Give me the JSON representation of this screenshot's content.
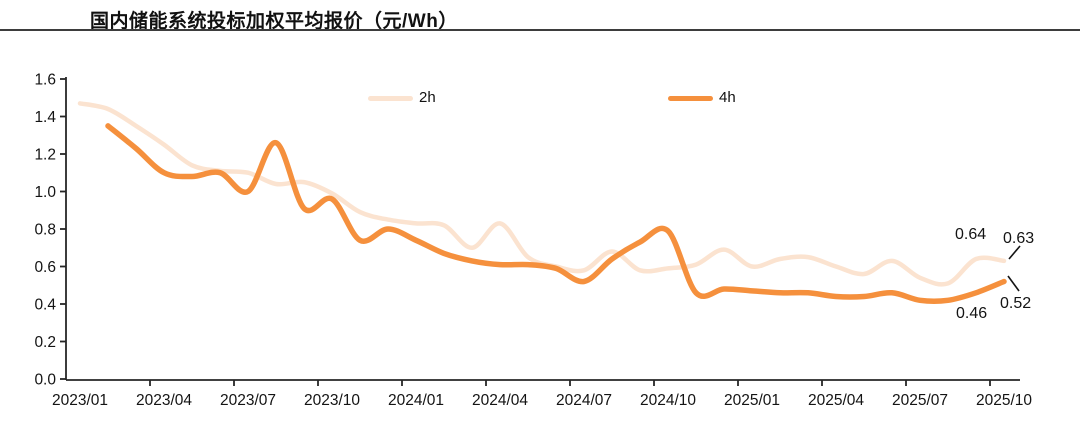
{
  "header": {
    "title": "国内储能系统投标加权平均报价（元/Wh）"
  },
  "chart_data": {
    "type": "line",
    "title": "国内储能系统投标加权平均报价（元/Wh）",
    "unit": "元/Wh",
    "grid": false,
    "legend_position": "top-center",
    "ylim": [
      0,
      1.6
    ],
    "y_axis_tick_labels": [
      "0.0",
      "0.2",
      "0.4",
      "0.6",
      "0.8",
      "1.0",
      "1.2",
      "1.4",
      "1.6"
    ],
    "x_axis_tick_labels": [
      "2023/01",
      "2023/04",
      "2023/07",
      "2023/10",
      "2024/01",
      "2024/04",
      "2024/07",
      "2024/10",
      "2025/01",
      "2025/04",
      "2025/07",
      "2025/10"
    ],
    "x": [
      "2023/01",
      "2023/02",
      "2023/03",
      "2023/04",
      "2023/05",
      "2023/06",
      "2023/07",
      "2023/08",
      "2023/09",
      "2023/10",
      "2023/11",
      "2023/12",
      "2024/01",
      "2024/02",
      "2024/03",
      "2024/04",
      "2024/05",
      "2024/06",
      "2024/07",
      "2024/08",
      "2024/09",
      "2024/10",
      "2024/11",
      "2024/12",
      "2025/01",
      "2025/02",
      "2025/03",
      "2025/04",
      "2025/05",
      "2025/06",
      "2025/07",
      "2025/08",
      "2025/09",
      "2025/10"
    ],
    "series": [
      {
        "name": "2h",
        "color": "#FBE3D0",
        "values": [
          1.47,
          1.44,
          1.35,
          1.25,
          1.14,
          1.11,
          1.1,
          1.04,
          1.05,
          0.99,
          0.89,
          0.85,
          0.83,
          0.82,
          0.7,
          0.83,
          0.65,
          0.6,
          0.58,
          0.68,
          0.58,
          0.59,
          0.61,
          0.69,
          0.6,
          0.64,
          0.65,
          0.6,
          0.56,
          0.63,
          0.54,
          0.51,
          0.64,
          0.63
        ]
      },
      {
        "name": "4h",
        "color": "#F5903D",
        "values": [
          null,
          1.35,
          1.23,
          1.1,
          1.08,
          1.1,
          1.0,
          1.26,
          0.91,
          0.96,
          0.74,
          0.8,
          0.74,
          0.67,
          0.63,
          0.61,
          0.61,
          0.59,
          0.52,
          0.64,
          0.73,
          0.79,
          0.46,
          0.48,
          0.47,
          0.46,
          0.46,
          0.44,
          0.44,
          0.46,
          0.42,
          0.42,
          0.46,
          0.52
        ]
      }
    ],
    "annotations": [
      {
        "series": "2h",
        "month": "2025/09",
        "text": "0.64"
      },
      {
        "series": "2h",
        "month": "2025/10",
        "text": "0.63"
      },
      {
        "series": "4h",
        "month": "2025/09",
        "text": "0.46"
      },
      {
        "series": "4h",
        "month": "2025/10",
        "text": "0.52"
      }
    ],
    "axis_color": "#262626"
  }
}
